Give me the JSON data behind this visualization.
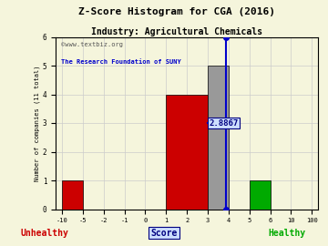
{
  "title": "Z-Score Histogram for CGA (2016)",
  "subtitle": "Industry: Agricultural Chemicals",
  "xlabel_center": "Score",
  "xlabel_left": "Unhealthy",
  "xlabel_right": "Healthy",
  "ylabel": "Number of companies (11 total)",
  "watermark1": "©www.textbiz.org",
  "watermark2": "The Research Foundation of SUNY",
  "zscore_value": 2.8867,
  "zscore_label": "2.8867",
  "xtick_labels": [
    "-10",
    "-5",
    "-2",
    "-1",
    "0",
    "1",
    "2",
    "3",
    "4",
    "5",
    "6",
    "10",
    "100"
  ],
  "bar_spans": [
    [
      0,
      1,
      1,
      "#cc0000"
    ],
    [
      5,
      7,
      4,
      "#cc0000"
    ],
    [
      7,
      8,
      5,
      "#999999"
    ],
    [
      9,
      10,
      1,
      "#00aa00"
    ]
  ],
  "zscore_tick_idx": 7.8867,
  "ylim": [
    0,
    6
  ],
  "bg_color": "#f5f5dc",
  "grid_color": "#cccccc",
  "title_color": "#000000",
  "unhealthy_color": "#cc0000",
  "healthy_color": "#00aa00",
  "score_color": "#000080",
  "line_color": "#0000cc",
  "annotation_color": "#000080",
  "annotation_bg": "#ccddff"
}
